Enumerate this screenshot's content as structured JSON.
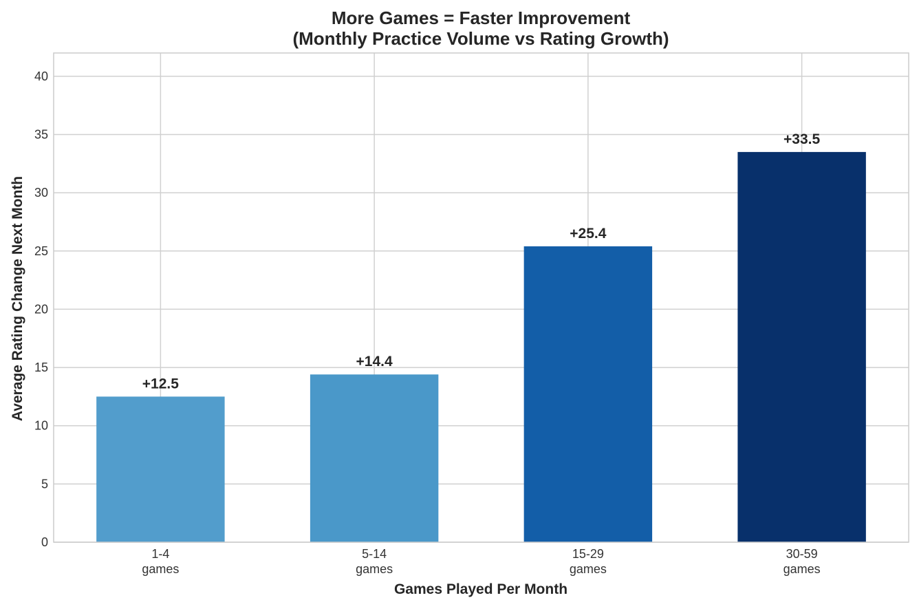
{
  "chart_data": {
    "type": "bar",
    "title": [
      "More Games = Faster Improvement",
      "(Monthly Practice Volume vs Rating Growth)"
    ],
    "xlabel": "Games Played Per Month",
    "ylabel": "Average Rating Change Next Month",
    "ylim": [
      0,
      42
    ],
    "yticks": [
      0,
      5,
      10,
      15,
      20,
      25,
      30,
      35,
      40
    ],
    "grid": true,
    "categories": [
      {
        "label": "1-4",
        "sublabel": "games",
        "value": 12.5,
        "data_label": "+12.5",
        "color": "#529dcc"
      },
      {
        "label": "5-14",
        "sublabel": "games",
        "value": 14.4,
        "data_label": "+14.4",
        "color": "#4a98c9"
      },
      {
        "label": "15-29",
        "sublabel": "games",
        "value": 25.4,
        "data_label": "+25.4",
        "color": "#135ea8"
      },
      {
        "label": "30-59",
        "sublabel": "games",
        "value": 33.5,
        "data_label": "+33.5",
        "color": "#08306b"
      }
    ]
  }
}
